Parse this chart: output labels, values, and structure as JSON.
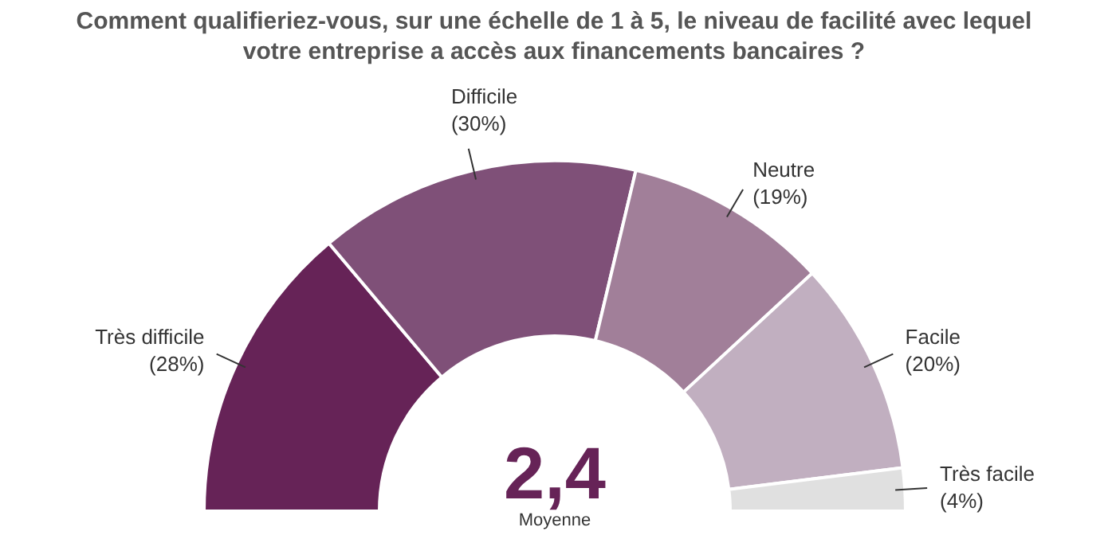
{
  "chart_data": {
    "type": "donut",
    "title": "Comment qualifieriez-vous, sur une échelle de 1 à 5, le niveau de facilité avec lequel votre entreprise a accès aux financements bancaires ?",
    "categories": [
      "Très difficile",
      "Difficile",
      "Neutre",
      "Facile",
      "Très facile"
    ],
    "values": [
      28,
      30,
      19,
      20,
      4
    ],
    "value_labels": [
      "(28%)",
      "(30%)",
      "(19%)",
      "(20%)",
      "(4%)"
    ],
    "colors": [
      "#662357",
      "#7f5078",
      "#a17f99",
      "#c1afc0",
      "#e0e0e0"
    ],
    "annotations": [
      "2,4",
      "Moyenne"
    ],
    "legend": false
  }
}
